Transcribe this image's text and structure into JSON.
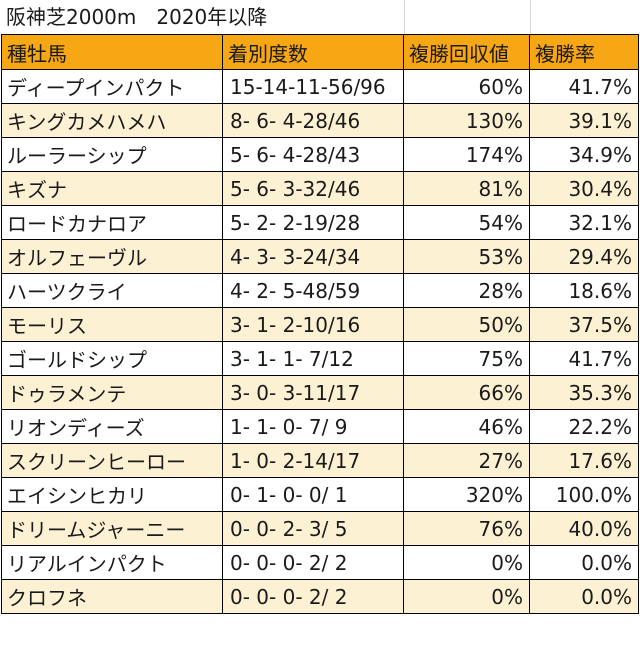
{
  "title": "阪神芝2000m　2020年以降",
  "headers": {
    "sire": "種牡馬",
    "record": "着別度数",
    "return_rate": "複勝回収値",
    "win_rate": "複勝率"
  },
  "rows": [
    {
      "sire": "ディープインパクト",
      "record": "15-14-11-56/96",
      "return_rate": "60%",
      "win_rate": "41.7%"
    },
    {
      "sire": "キングカメハメハ",
      "record": "8- 6- 4-28/46",
      "return_rate": "130%",
      "win_rate": "39.1%"
    },
    {
      "sire": "ルーラーシップ",
      "record": "5- 6- 4-28/43",
      "return_rate": "174%",
      "win_rate": "34.9%"
    },
    {
      "sire": "キズナ",
      "record": "5- 6- 3-32/46",
      "return_rate": "81%",
      "win_rate": "30.4%"
    },
    {
      "sire": "ロードカナロア",
      "record": "5- 2- 2-19/28",
      "return_rate": "54%",
      "win_rate": "32.1%"
    },
    {
      "sire": "オルフェーヴル",
      "record": "4- 3- 3-24/34",
      "return_rate": "53%",
      "win_rate": "29.4%"
    },
    {
      "sire": "ハーツクライ",
      "record": "4- 2- 5-48/59",
      "return_rate": "28%",
      "win_rate": "18.6%"
    },
    {
      "sire": "モーリス",
      "record": "3- 1- 2-10/16",
      "return_rate": "50%",
      "win_rate": "37.5%"
    },
    {
      "sire": "ゴールドシップ",
      "record": "3- 1- 1- 7/12",
      "return_rate": "75%",
      "win_rate": "41.7%"
    },
    {
      "sire": "ドゥラメンテ",
      "record": "3- 0- 3-11/17",
      "return_rate": "66%",
      "win_rate": "35.3%"
    },
    {
      "sire": "リオンディーズ",
      "record": "1- 1- 0- 7/ 9",
      "return_rate": "46%",
      "win_rate": "22.2%"
    },
    {
      "sire": "スクリーンヒーロー",
      "record": "1- 0- 2-14/17",
      "return_rate": "27%",
      "win_rate": "17.6%"
    },
    {
      "sire": "エイシンヒカリ",
      "record": "0- 1- 0- 0/ 1",
      "return_rate": "320%",
      "win_rate": "100.0%"
    },
    {
      "sire": "ドリームジャーニー",
      "record": "0- 0- 2- 3/ 5",
      "return_rate": "76%",
      "win_rate": "40.0%"
    },
    {
      "sire": "リアルインパクト",
      "record": "0- 0- 0- 2/ 2",
      "return_rate": "0%",
      "win_rate": "0.0%"
    },
    {
      "sire": "クロフネ",
      "record": "0- 0- 0- 2/ 2",
      "return_rate": "0%",
      "win_rate": "0.0%"
    }
  ]
}
